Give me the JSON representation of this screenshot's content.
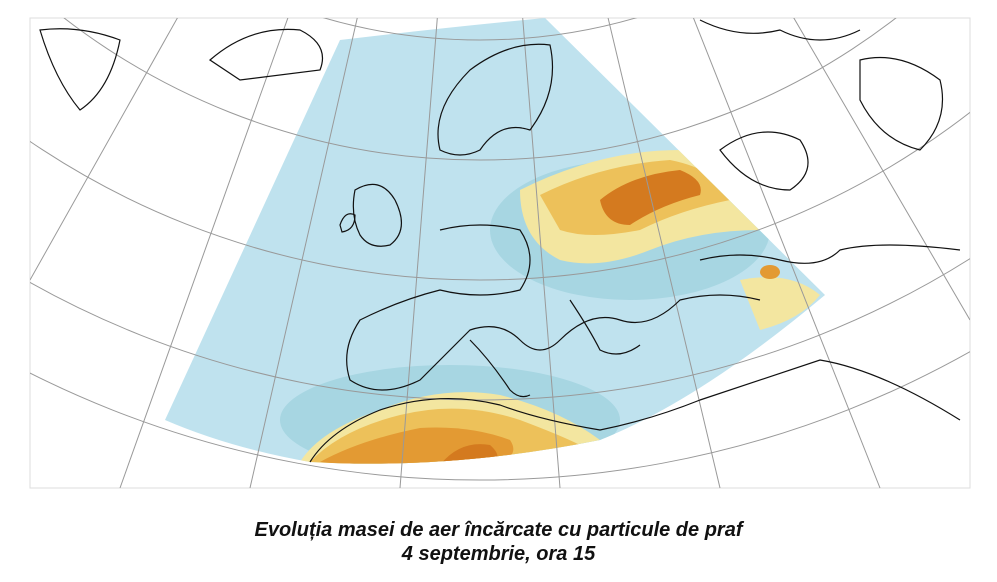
{
  "caption": {
    "line1": "Evoluția masei de aer încărcate cu particule de praf",
    "line2": "4 septembrie, ora 15"
  }
}
